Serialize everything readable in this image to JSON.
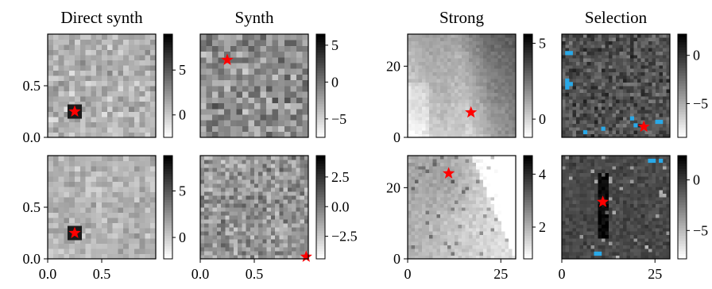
{
  "figure": {
    "colormap": "gray_r",
    "background": "#ffffff",
    "star_color": "#ff0000",
    "selection_marker_color": "#29a9e8"
  },
  "chart_data": [
    {
      "id": "direct-synth-top",
      "type": "heatmap",
      "title": "Direct synth",
      "xlim": [
        0,
        1
      ],
      "ylim": [
        0,
        1
      ],
      "xticks": [],
      "yticks": [
        0,
        0.5
      ],
      "ytick_labels": [
        "0.0",
        "0.5"
      ],
      "grid": 20,
      "seed": 11,
      "mean": 0.3,
      "spread": 0.12,
      "star": {
        "x": 0.25,
        "y": 0.25
      },
      "highlight": true,
      "colorbar": {
        "ticks": [
          0,
          5
        ],
        "tick_labels": [
          "0",
          "5"
        ],
        "range": [
          -2.5,
          9
        ]
      }
    },
    {
      "id": "synth-top",
      "type": "heatmap",
      "title": "Synth",
      "xlim": [
        0,
        1
      ],
      "ylim": [
        0,
        1
      ],
      "xticks": [],
      "yticks": [],
      "grid": 18,
      "seed": 23,
      "mean": 0.45,
      "spread": 0.17,
      "star": {
        "x": 0.25,
        "y": 0.75
      },
      "colorbar": {
        "ticks": [
          -5,
          0,
          5
        ],
        "tick_labels": [
          "−5",
          "0",
          "5"
        ],
        "range": [
          -7.5,
          6.5
        ]
      }
    },
    {
      "id": "strong-top",
      "type": "heatmap",
      "title": "Strong",
      "xlim": [
        0,
        29
      ],
      "ylim": [
        0,
        29
      ],
      "xticks": [],
      "yticks": [
        0,
        20
      ],
      "ytick_labels": [
        "0",
        "20"
      ],
      "grid": 30,
      "seed": 37,
      "pattern": "strong_top",
      "star": {
        "x": 17,
        "y": 7
      },
      "colorbar": {
        "ticks": [
          0,
          5
        ],
        "tick_labels": [
          "0",
          "5"
        ],
        "range": [
          -1.2,
          5.6
        ]
      }
    },
    {
      "id": "selection-top",
      "type": "heatmap",
      "title": "Selection",
      "xlim": [
        0,
        29
      ],
      "ylim": [
        0,
        29
      ],
      "xticks": [],
      "yticks": [],
      "grid": 30,
      "seed": 41,
      "mean": 0.68,
      "spread": 0.13,
      "star": {
        "x": 22,
        "y": 3
      },
      "markers": [
        [
          1,
          24
        ],
        [
          2,
          24
        ],
        [
          1,
          16
        ],
        [
          1,
          15
        ],
        [
          1,
          14
        ],
        [
          2,
          15
        ],
        [
          6,
          1
        ],
        [
          11,
          2
        ],
        [
          19,
          5
        ],
        [
          20,
          3
        ],
        [
          26,
          4
        ],
        [
          27,
          4
        ]
      ],
      "colorbar": {
        "ticks": [
          -5,
          0
        ],
        "tick_labels": [
          "−5",
          "0"
        ],
        "range": [
          -8.5,
          2.2
        ]
      }
    },
    {
      "id": "direct-synth-bottom",
      "type": "heatmap",
      "title": "",
      "xlim": [
        0,
        1
      ],
      "ylim": [
        0,
        1
      ],
      "xticks": [
        0,
        0.5
      ],
      "xtick_labels": [
        "0.0",
        "0.5"
      ],
      "yticks": [
        0,
        0.5
      ],
      "ytick_labels": [
        "0.0",
        "0.5"
      ],
      "grid": 20,
      "seed": 53,
      "mean": 0.3,
      "spread": 0.1,
      "star": {
        "x": 0.25,
        "y": 0.25
      },
      "highlight": true,
      "colorbar": {
        "ticks": [
          0,
          5
        ],
        "tick_labels": [
          "0",
          "5"
        ],
        "range": [
          -2.3,
          8.8
        ]
      }
    },
    {
      "id": "synth-bottom",
      "type": "heatmap",
      "title": "",
      "xlim": [
        0,
        1
      ],
      "ylim": [
        0,
        1
      ],
      "xticks": [
        0,
        0.5
      ],
      "xtick_labels": [
        "0.0",
        "0.5"
      ],
      "yticks": [],
      "grid": 26,
      "seed": 67,
      "mean": 0.42,
      "spread": 0.15,
      "star": {
        "x": 0.98,
        "y": 0.02
      },
      "colorbar": {
        "ticks": [
          -2.5,
          0,
          2.5
        ],
        "tick_labels": [
          "−2.5",
          "0.0",
          "2.5"
        ],
        "range": [
          -4.4,
          4.3
        ]
      }
    },
    {
      "id": "strong-bottom",
      "type": "heatmap",
      "title": "",
      "xlim": [
        0,
        29
      ],
      "ylim": [
        0,
        29
      ],
      "xticks": [
        0,
        25
      ],
      "xtick_labels": [
        "0",
        "25"
      ],
      "yticks": [
        0,
        20
      ],
      "ytick_labels": [
        "0",
        "20"
      ],
      "grid": 30,
      "seed": 79,
      "pattern": "strong_bottom",
      "star": {
        "x": 11,
        "y": 24
      },
      "colorbar": {
        "ticks": [
          2,
          4
        ],
        "tick_labels": [
          "2",
          "4"
        ],
        "range": [
          0.8,
          4.7
        ]
      }
    },
    {
      "id": "selection-bottom",
      "type": "heatmap",
      "title": "",
      "xlim": [
        0,
        29
      ],
      "ylim": [
        0,
        29
      ],
      "xticks": [
        0,
        25
      ],
      "xtick_labels": [
        "0",
        "25"
      ],
      "yticks": [],
      "grid": 30,
      "seed": 83,
      "pattern": "selection_bottom",
      "star": {
        "x": 11,
        "y": 16
      },
      "markers": [
        [
          24,
          28
        ],
        [
          25,
          28
        ],
        [
          27,
          28
        ],
        [
          9,
          1
        ],
        [
          10,
          1
        ]
      ],
      "colorbar": {
        "ticks": [
          -5,
          0
        ],
        "tick_labels": [
          "−5",
          "0"
        ],
        "range": [
          -7.8,
          2.4
        ]
      }
    }
  ]
}
